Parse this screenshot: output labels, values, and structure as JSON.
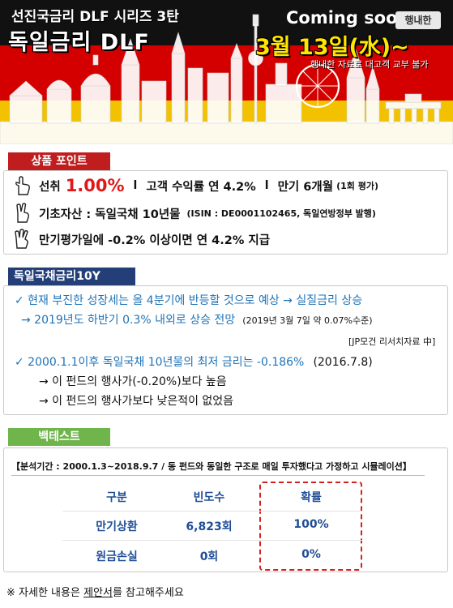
{
  "banner": {
    "series_title": "선진국금리 DLF 시리즈 3탄",
    "main_title": "독일금리 DLF",
    "coming_soon": "Coming soon",
    "tag": "행내한",
    "date": "3월 13일(水)~",
    "notice": "행내한 자료로 대고객 교부 불가"
  },
  "section1": {
    "header": "상품 포인트",
    "row1": {
      "prefix": "선취",
      "rate": "1.00%",
      "sep1": "l",
      "return": "고객 수익률 연 4.2%",
      "sep2": "l",
      "maturity": "만기 6개월",
      "maturity_note": "(1회 평가)"
    },
    "row2": {
      "main": "기초자산 : 독일국채 10년물",
      "note": "(ISIN : DE0001102465,  독일연방정부 발행)"
    },
    "row3": "만기평가일에 -0.2% 이상이면 연 4.2% 지급"
  },
  "section2": {
    "header": "독일국채금리10Y",
    "l1": "✓  현재 부진한 성장세는 올 4분기에 반등할 것으로 예상 → 실질금리 상승",
    "l2": "→ 2019년도 하반기  0.3% 내외로 상승 전망",
    "l2_note": "(2019년 3월 7일 약 0.07%수준)",
    "source": "[JP모건 리서치자료 中]",
    "l3": "✓  2000.1.1이후 독일국채 10년물의 최저 금리는  -0.186%",
    "l3_date": "(2016.7.8)",
    "l4": "→ 이 펀드의 행사가(-0.20%)보다 높음",
    "l5": "→ 이 펀드의 행사가보다 낮은적이 없었음"
  },
  "section3": {
    "header": "백테스트",
    "period": "【분석기간 : 2000.1.3~2018.9.7  / 동 펀드와 동일한 구조로 매일 투자했다고 가정하고 시뮬레이션】",
    "table": {
      "headers": [
        "구분",
        "빈도수",
        "확률"
      ],
      "rows": [
        [
          "만기상환",
          "6,823회",
          "100%"
        ],
        [
          "원금손실",
          "0회",
          "0%"
        ]
      ]
    }
  },
  "footer": {
    "prefix": "※ 자세한 내용은 ",
    "link": "제안서",
    "suffix": "를 참고해주세요"
  },
  "colors": {
    "flag_black": "#111111",
    "flag_red": "#d40000",
    "flag_gold": "#f2c200",
    "section1": "#c01e1e",
    "section2": "#243f78",
    "section3": "#6fb54c",
    "highlight_red": "#e01818",
    "text_blue": "#1e73b8",
    "table_blue": "#1f4e96"
  },
  "icons": [
    "hand-one-finger-icon",
    "hand-two-fingers-icon",
    "hand-three-fingers-icon",
    "checkmark-icon",
    "arrow-right-icon"
  ]
}
